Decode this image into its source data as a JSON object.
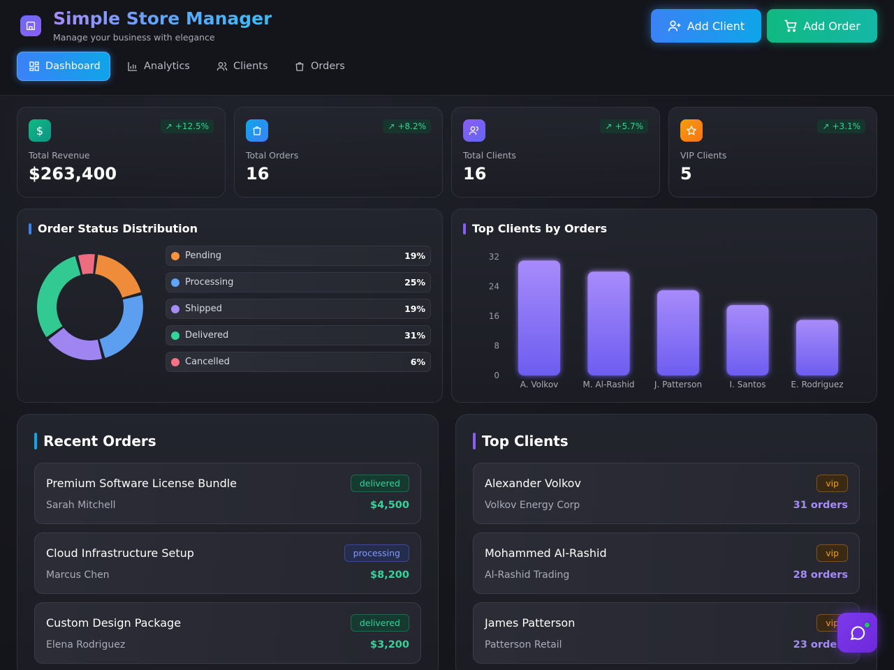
{
  "app": {
    "title": "Simple Store Manager",
    "subtitle": "Manage your business with elegance",
    "logo_icon": "store-icon"
  },
  "header_actions": {
    "add_client": "Add Client",
    "add_order": "Add Order"
  },
  "nav": {
    "active": "Dashboard",
    "tabs": [
      {
        "label": "Dashboard",
        "icon": "dashboard-icon"
      },
      {
        "label": "Analytics",
        "icon": "bar-chart-icon"
      },
      {
        "label": "Clients",
        "icon": "users-icon"
      },
      {
        "label": "Orders",
        "icon": "shopping-bag-icon"
      }
    ]
  },
  "stats": [
    {
      "label": "Total Revenue",
      "value": "$263,400",
      "change": "+12.5%",
      "icon": "dollar-icon",
      "color": "#10b981"
    },
    {
      "label": "Total Orders",
      "value": "16",
      "change": "+8.2%",
      "icon": "shopping-bag-icon",
      "color": "#0ea5e9"
    },
    {
      "label": "Total Clients",
      "value": "16",
      "change": "+5.7%",
      "icon": "users-icon",
      "color": "#8b5cf6"
    },
    {
      "label": "VIP Clients",
      "value": "5",
      "change": "+3.1%",
      "icon": "star-icon",
      "color": "#f59e0b"
    }
  ],
  "order_status": {
    "title": "Order Status Distribution",
    "items": [
      {
        "label": "Pending",
        "pct": "19%",
        "color": "#fb923c"
      },
      {
        "label": "Processing",
        "pct": "25%",
        "color": "#60a5fa"
      },
      {
        "label": "Shipped",
        "pct": "19%",
        "color": "#a78bfa"
      },
      {
        "label": "Delivered",
        "pct": "31%",
        "color": "#34d399"
      },
      {
        "label": "Cancelled",
        "pct": "6%",
        "color": "#f87185"
      }
    ]
  },
  "top_clients_chart": {
    "title": "Top Clients by Orders"
  },
  "chart_data": [
    {
      "type": "pie",
      "categories": [
        "Pending",
        "Processing",
        "Shipped",
        "Delivered",
        "Cancelled"
      ],
      "values": [
        19,
        25,
        19,
        31,
        6
      ]
    },
    {
      "type": "bar",
      "categories": [
        "A. Volkov",
        "M. Al-Rashid",
        "J. Patterson",
        "I. Santos",
        "E. Rodriguez"
      ],
      "values": [
        31,
        28,
        23,
        19,
        15
      ],
      "yticks": [
        "0",
        "8",
        "16",
        "24",
        "32"
      ],
      "ylim": [
        0,
        32
      ],
      "grid": false
    }
  ],
  "recent_orders": {
    "title": "Recent Orders",
    "items": [
      {
        "title": "Premium Software License Bundle",
        "client": "Sarah Mitchell",
        "status": "delivered",
        "amount": "$4,500"
      },
      {
        "title": "Cloud Infrastructure Setup",
        "client": "Marcus Chen",
        "status": "processing",
        "amount": "$8,200"
      },
      {
        "title": "Custom Design Package",
        "client": "Elena Rodriguez",
        "status": "delivered",
        "amount": "$3,200"
      }
    ]
  },
  "top_clients": {
    "title": "Top Clients",
    "items": [
      {
        "name": "Alexander Volkov",
        "company": "Volkov Energy Corp",
        "tier": "vip",
        "orders": "31 orders"
      },
      {
        "name": "Mohammed Al-Rashid",
        "company": "Al-Rashid Trading",
        "tier": "vip",
        "orders": "28 orders"
      },
      {
        "name": "James Patterson",
        "company": "Patterson Retail",
        "tier": "vip",
        "orders": "23 orders"
      }
    ]
  },
  "chat": {
    "icon": "chat-icon"
  }
}
